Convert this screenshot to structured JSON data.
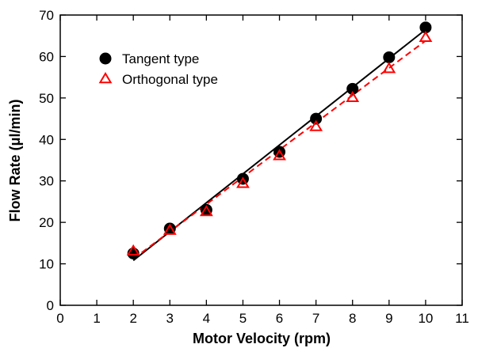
{
  "chart_data": {
    "type": "scatter",
    "xlabel": "Motor Velocity (rpm)",
    "ylabel": "Flow Rate (μl/min)",
    "xlim": [
      0,
      11
    ],
    "ylim": [
      0,
      70
    ],
    "xticks": [
      0,
      1,
      2,
      3,
      4,
      5,
      6,
      7,
      8,
      9,
      10,
      11
    ],
    "yticks": [
      0,
      10,
      20,
      30,
      40,
      50,
      60,
      70
    ],
    "grid": false,
    "legend_position": "top-left",
    "series": [
      {
        "name": "Tangent type",
        "marker": "filled-circle",
        "color": "#000000",
        "x": [
          2,
          3,
          4,
          5,
          6,
          7,
          8,
          9,
          10
        ],
        "y": [
          12.5,
          18.5,
          23,
          30.5,
          37,
          45,
          52.2,
          59.8,
          67
        ],
        "fit_line": {
          "style": "solid",
          "x": [
            2,
            10
          ],
          "y": [
            10.8,
            66.5
          ]
        }
      },
      {
        "name": "Orthogonal type",
        "marker": "open-triangle",
        "color": "#ff0000",
        "x": [
          2,
          3,
          4,
          5,
          6,
          7,
          8,
          9,
          10
        ],
        "y": [
          13,
          18,
          22.5,
          29.3,
          36,
          43,
          50,
          57,
          64.5
        ],
        "fit_line": {
          "style": "dashed",
          "x": [
            2,
            10
          ],
          "y": [
            11.2,
            63.8
          ]
        }
      }
    ]
  }
}
